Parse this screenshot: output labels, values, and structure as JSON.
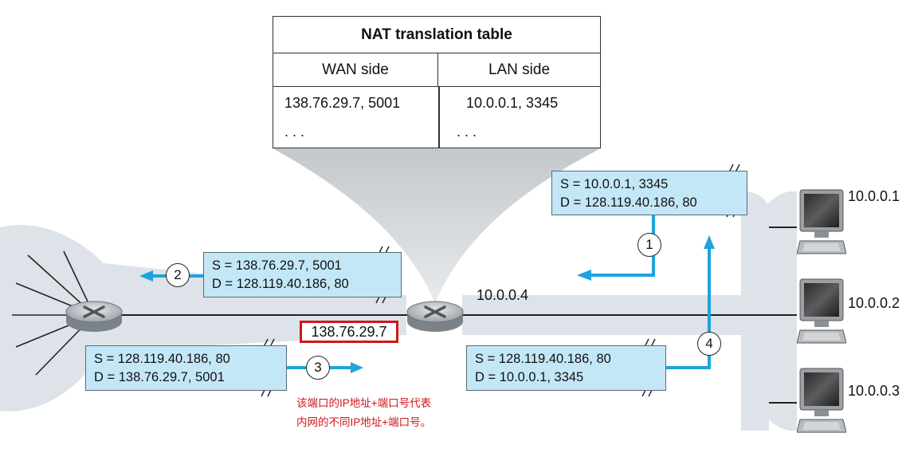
{
  "nat_table": {
    "title": "NAT translation table",
    "wan_header": "WAN side",
    "lan_header": "LAN side",
    "rows": [
      {
        "wan": "138.76.29.7, 5001",
        "lan": "10.0.0.1, 3345"
      },
      {
        "wan": ". . .",
        "lan": ". . ."
      }
    ]
  },
  "packets": {
    "p1": {
      "src": "S = 10.0.0.1, 3345",
      "dst": "D = 128.119.40.186, 80"
    },
    "p2": {
      "src": "S = 138.76.29.7, 5001",
      "dst": "D = 128.119.40.186, 80"
    },
    "p3": {
      "src": "S = 128.119.40.186, 80",
      "dst": "D = 138.76.29.7, 5001"
    },
    "p4": {
      "src": "S = 128.119.40.186, 80",
      "dst": "D = 10.0.0.1, 3345"
    }
  },
  "steps": [
    "1",
    "2",
    "3",
    "4"
  ],
  "router": {
    "lan_ip": "10.0.0.4",
    "wan_ip": "138.76.29.7"
  },
  "hosts": [
    "10.0.0.1",
    "10.0.0.2",
    "10.0.0.3"
  ],
  "annotation": {
    "line1": "该端口的IP地址+端口号代表",
    "line2": "内网的不同IP地址+端口号。"
  },
  "colors": {
    "packet_fill": "#c4e7f7",
    "arrow": "#1fa3dc",
    "highlight": "#d0161b",
    "backbone": "#dde3e8"
  }
}
